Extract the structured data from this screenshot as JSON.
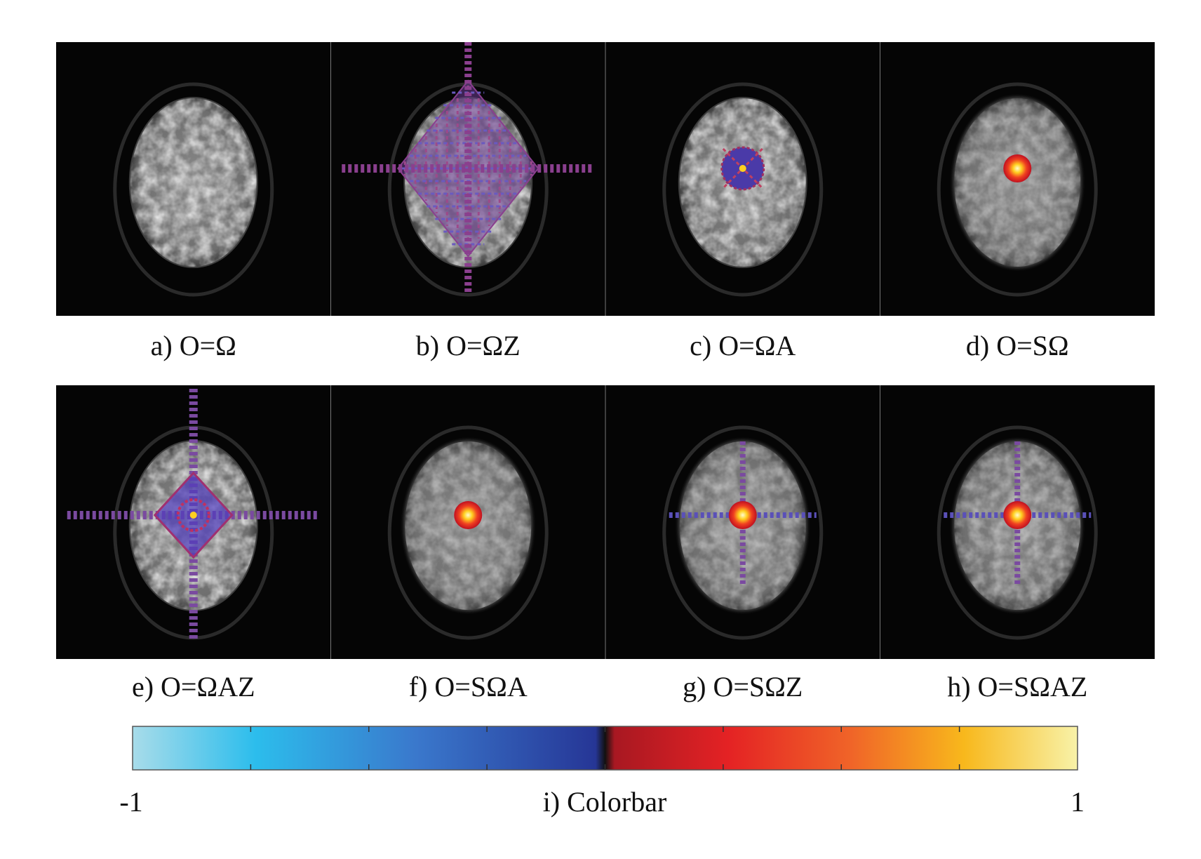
{
  "panels": [
    {
      "label": "a) O=Ω"
    },
    {
      "label": "b) O=ΩZ"
    },
    {
      "label": "c) O=ΩA"
    },
    {
      "label": "d) O=SΩ"
    },
    {
      "label": "e) O=ΩAZ"
    },
    {
      "label": "f) O=SΩA"
    },
    {
      "label": "g) O=SΩZ"
    },
    {
      "label": "h) O=SΩAZ"
    }
  ],
  "colorbar": {
    "label": "i) Colorbar",
    "min": -1,
    "max": 1
  }
}
